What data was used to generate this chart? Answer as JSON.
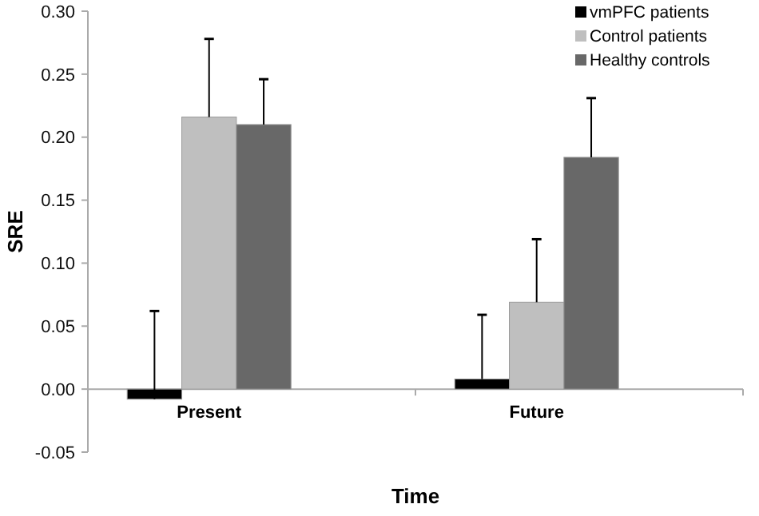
{
  "chart_data": {
    "type": "bar",
    "xlabel": "Time",
    "ylabel": "SRE",
    "categories": [
      "Present",
      "Future"
    ],
    "series": [
      {
        "name": "vmPFC patients",
        "color": "#000000",
        "values": [
          -0.008,
          0.008
        ],
        "errors": [
          [
            -0.008,
            0.062
          ],
          [
            0.008,
            0.059
          ]
        ]
      },
      {
        "name": "Control patients",
        "color": "#bfbfbf",
        "values": [
          0.216,
          0.069
        ],
        "errors": [
          [
            0.216,
            0.278
          ],
          [
            0.069,
            0.119
          ]
        ]
      },
      {
        "name": "Healthy controls",
        "color": "#686868",
        "values": [
          0.21,
          0.184
        ],
        "errors": [
          [
            0.21,
            0.246
          ],
          [
            0.184,
            0.231
          ]
        ]
      }
    ],
    "ylim": [
      -0.05,
      0.3
    ],
    "yticks": [
      {
        "value": -0.05,
        "label": "-0.05"
      },
      {
        "value": 0,
        "label": "0.00"
      },
      {
        "value": 0.05,
        "label": "0.05"
      },
      {
        "value": 0.1,
        "label": "0.10"
      },
      {
        "value": 0.15,
        "label": "0.15"
      },
      {
        "value": 0.2,
        "label": "0.20"
      },
      {
        "value": 0.25,
        "label": "0.25"
      },
      {
        "value": 0.3,
        "label": "0.30"
      }
    ],
    "grid": false,
    "legend": "top right"
  }
}
